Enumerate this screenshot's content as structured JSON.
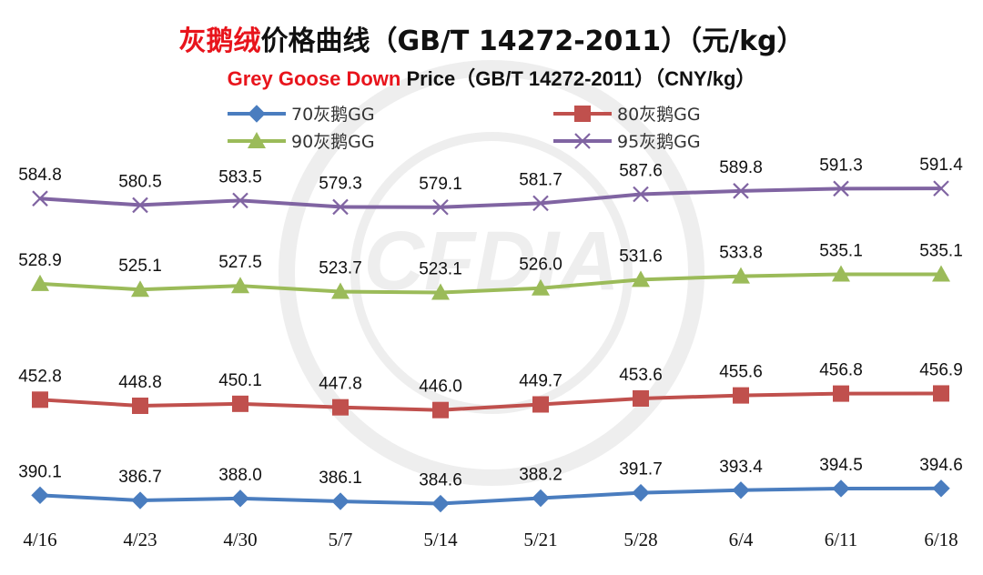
{
  "title": {
    "cn_highlight": "灰鹅绒",
    "cn_rest": "价格曲线（GB/T 14272-2011）（元/kg）",
    "en_highlight": "Grey Goose Down",
    "en_rest": " Price（GB/T 14272-2011）（CNY/kg）"
  },
  "watermark": {
    "text": "CHINA FEATHER AND DOWN INDUSTRIAL ASSOCIATION 中国羽绒工业协会 CFDIA"
  },
  "colors": {
    "title_highlight": "#e8141c",
    "title_text": "#111111",
    "series_70": "#4a7dbf",
    "series_80": "#c0504d",
    "series_90": "#9bbb59",
    "series_95": "#8064a2"
  },
  "chart_data": {
    "type": "line",
    "categories": [
      "4/16",
      "4/23",
      "4/30",
      "5/7",
      "5/14",
      "5/21",
      "5/28",
      "6/4",
      "6/11",
      "6/18"
    ],
    "ylim": [
      370,
      610
    ],
    "grid": false,
    "legend_position": "top",
    "series": [
      {
        "name": "70灰鹅GG",
        "marker": "diamond",
        "color": "#4a7dbf",
        "values": [
          390.1,
          386.7,
          388.0,
          386.1,
          384.6,
          388.2,
          391.7,
          393.4,
          394.5,
          394.6
        ],
        "labels": [
          "390.1",
          "386.7",
          "388.0",
          "386.1",
          "384.6",
          "388.2",
          "391.7",
          "393.4",
          "394.5",
          "394.6"
        ]
      },
      {
        "name": "80灰鹅GG",
        "marker": "square",
        "color": "#c0504d",
        "values": [
          452.8,
          448.8,
          450.1,
          447.8,
          446.0,
          449.7,
          453.6,
          455.6,
          456.8,
          456.9
        ],
        "labels": [
          "452.8",
          "448.8",
          "450.1",
          "447.8",
          "446.0",
          "449.7",
          "453.6",
          "455.6",
          "456.8",
          "456.9"
        ]
      },
      {
        "name": "90灰鹅GG",
        "marker": "triangle",
        "color": "#9bbb59",
        "values": [
          528.9,
          525.1,
          527.5,
          523.7,
          523.1,
          526.0,
          531.6,
          533.8,
          535.1,
          535.1
        ],
        "labels": [
          "528.9",
          "525.1",
          "527.5",
          "523.7",
          "523.1",
          "526.0",
          "531.6",
          "533.8",
          "535.1",
          "535.1"
        ]
      },
      {
        "name": "95灰鹅GG",
        "marker": "x",
        "color": "#8064a2",
        "values": [
          584.8,
          580.5,
          583.5,
          579.3,
          579.1,
          581.7,
          587.6,
          589.8,
          591.3,
          591.4
        ],
        "labels": [
          "584.8",
          "580.5",
          "583.5",
          "579.3",
          "579.1",
          "581.7",
          "587.6",
          "589.8",
          "591.3",
          "591.4"
        ]
      }
    ]
  }
}
